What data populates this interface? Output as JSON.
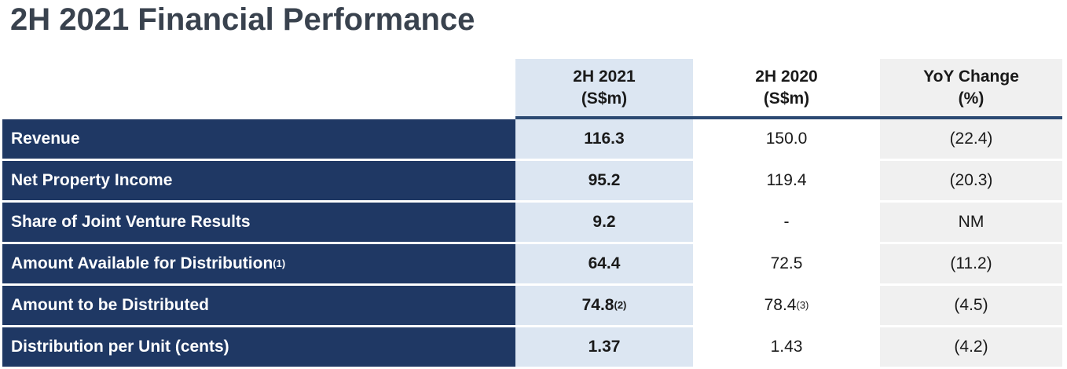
{
  "title": "2H 2021 Financial Performance",
  "table": {
    "header": {
      "col_2021": {
        "line1": "2H 2021",
        "line2": "(S$m)"
      },
      "col_2020": {
        "line1": "2H 2020",
        "line2": "(S$m)"
      },
      "col_yoy": {
        "line1": "YoY Change",
        "line2": "(%)"
      }
    },
    "rows": [
      {
        "label": "Revenue",
        "label_sup": "",
        "v2021": "116.3",
        "v2021_sup": "",
        "v2020": "150.0",
        "v2020_sup": "",
        "yoy": "(22.4)"
      },
      {
        "label": "Net Property Income",
        "label_sup": "",
        "v2021": "95.2",
        "v2021_sup": "",
        "v2020": "119.4",
        "v2020_sup": "",
        "yoy": "(20.3)"
      },
      {
        "label": "Share of Joint Venture Results",
        "label_sup": "",
        "v2021": "9.2",
        "v2021_sup": "",
        "v2020": "-",
        "v2020_sup": "",
        "yoy": "NM"
      },
      {
        "label": "Amount Available for Distribution",
        "label_sup": "(1)",
        "v2021": "64.4",
        "v2021_sup": "",
        "v2020": "72.5",
        "v2020_sup": "",
        "yoy": "(11.2)"
      },
      {
        "label": "Amount to be Distributed",
        "label_sup": "",
        "v2021": "74.8",
        "v2021_sup": "(2)",
        "v2020": "78.4",
        "v2020_sup": "(3)",
        "yoy": "(4.5)"
      },
      {
        "label": "Distribution per Unit (cents)",
        "label_sup": "",
        "v2021": "1.37",
        "v2021_sup": "",
        "v2020": "1.43",
        "v2020_sup": "",
        "yoy": "(4.2)"
      }
    ]
  },
  "colors": {
    "navy": "#1F3864",
    "light_blue": "#DCE6F2",
    "light_gray": "#F0F0F0",
    "divider": "#2C4A73",
    "title_text": "#39424E",
    "value_text": "#1A1A1A",
    "label_text": "#FFFFFF"
  }
}
